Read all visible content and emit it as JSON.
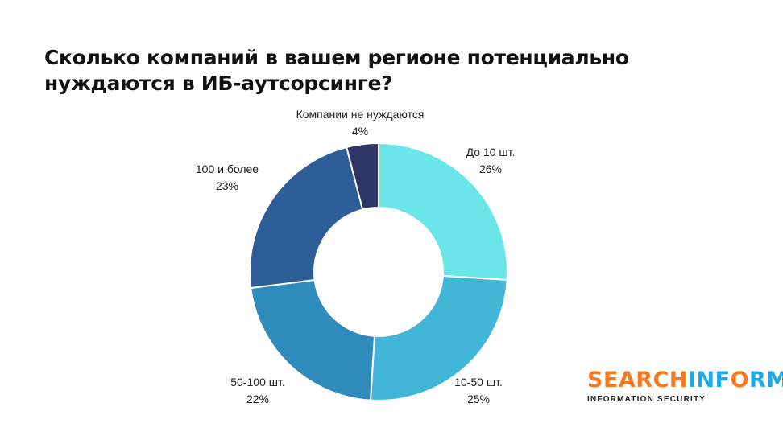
{
  "chart_data": {
    "type": "pie",
    "donut": true,
    "title": "Сколько компаний в вашем регионе потенциально нуждаются в ИБ-аутсорсинге?",
    "categories": [
      "До 10 шт.",
      "10-50 шт.",
      "50-100 шт.",
      "100 и более",
      "Компании не нуждаются"
    ],
    "values": [
      26,
      25,
      22,
      23,
      4
    ],
    "value_labels": [
      "26%",
      "25%",
      "22%",
      "23%",
      "4%"
    ],
    "colors": [
      "#6ae6e8",
      "#42b6d6",
      "#2e8bbb",
      "#2d5e98",
      "#2f3468"
    ]
  },
  "logo": {
    "part1": "SEARCH",
    "part2": "INF",
    "part3": "O",
    "part4": "RM",
    "subtitle": "INFORMATION SECURITY",
    "color_orange": "#f47920",
    "color_blue": "#1fa8e8"
  }
}
